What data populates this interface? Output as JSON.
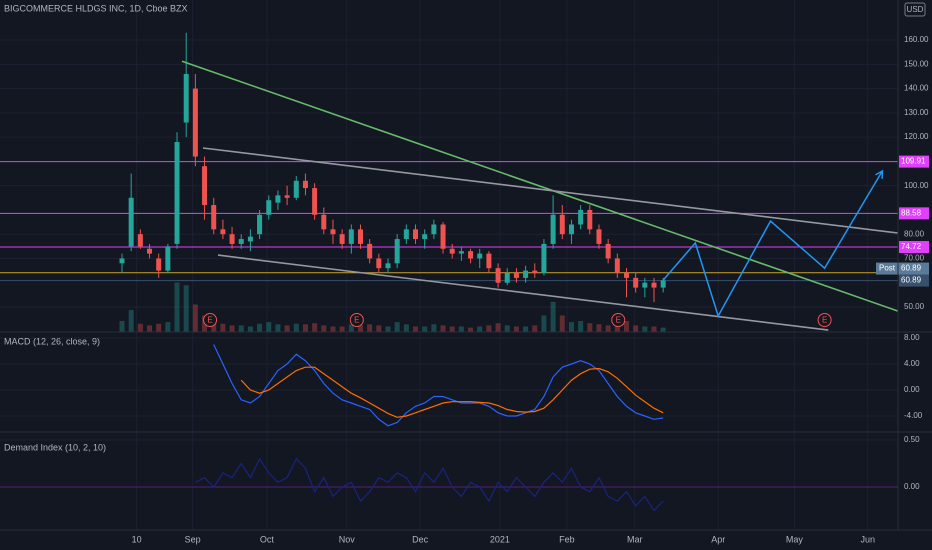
{
  "chart_data": {
    "type": "candlestick",
    "title": "BIGCOMMERCE HLDGS INC, 1D, Cboe BZX",
    "currency": "USD",
    "up_color": "#26a69a",
    "down_color": "#ef5350",
    "open": [
      68,
      75,
      80,
      74,
      70,
      65,
      76,
      126,
      140,
      108,
      92,
      82,
      80,
      76,
      77,
      80,
      88,
      93,
      96,
      95,
      102,
      99,
      88,
      82,
      80,
      76,
      82,
      76,
      70,
      66,
      68,
      78,
      82,
      78,
      80,
      84,
      74,
      72,
      73,
      70,
      72,
      66,
      60,
      64,
      62,
      65,
      64,
      76,
      88,
      80,
      84,
      90,
      82,
      76,
      70,
      64,
      62,
      58,
      60,
      58
    ],
    "high": [
      72,
      105,
      82,
      76,
      72,
      76,
      122,
      163,
      146,
      112,
      95,
      86,
      83,
      80,
      82,
      90,
      96,
      98,
      100,
      104,
      105,
      101,
      91,
      86,
      82,
      84,
      84,
      78,
      72,
      70,
      80,
      84,
      84,
      82,
      86,
      85,
      76,
      75,
      74,
      74,
      73,
      68,
      66,
      66,
      67,
      68,
      78,
      96,
      92,
      86,
      92,
      92,
      84,
      78,
      72,
      66,
      64,
      62,
      62,
      62
    ],
    "low": [
      64,
      73,
      74,
      70,
      62,
      64,
      74,
      120,
      108,
      86,
      80,
      78,
      74,
      74,
      73,
      78,
      86,
      90,
      92,
      94,
      96,
      86,
      80,
      76,
      74,
      72,
      74,
      68,
      64,
      64,
      66,
      76,
      76,
      74,
      78,
      72,
      70,
      69,
      68,
      66,
      64,
      58,
      59,
      60,
      60,
      62,
      63,
      74,
      78,
      76,
      82,
      80,
      74,
      68,
      62,
      54,
      56,
      54,
      52,
      56
    ],
    "close": [
      70,
      95,
      75,
      72,
      65,
      75,
      118,
      146,
      112,
      92,
      82,
      80,
      76,
      78,
      79,
      88,
      94,
      96,
      95,
      102,
      99,
      88,
      82,
      80,
      76,
      82,
      76,
      70,
      66,
      68,
      78,
      82,
      78,
      80,
      84,
      74,
      72,
      73,
      70,
      72,
      66,
      60,
      64,
      62,
      65,
      64,
      76,
      88,
      80,
      84,
      90,
      82,
      76,
      70,
      64,
      62,
      58,
      60,
      58,
      61
    ],
    "volume": [
      20,
      40,
      15,
      12,
      15,
      18,
      90,
      85,
      50,
      30,
      20,
      15,
      12,
      12,
      10,
      15,
      18,
      14,
      12,
      15,
      14,
      16,
      12,
      10,
      10,
      14,
      12,
      14,
      12,
      10,
      18,
      14,
      10,
      10,
      14,
      12,
      10,
      10,
      8,
      10,
      12,
      16,
      12,
      10,
      10,
      12,
      30,
      55,
      30,
      18,
      20,
      16,
      14,
      12,
      15,
      20,
      12,
      10,
      10,
      8
    ],
    "volume_lim": [
      0,
      100
    ],
    "xlim": [
      -13.3,
      84.6
    ],
    "xticks": [
      {
        "value": 1.6,
        "label": "10"
      },
      {
        "value": 7.7,
        "label": "Sep"
      },
      {
        "value": 15.8,
        "label": "Oct"
      },
      {
        "value": 24.5,
        "label": "Nov"
      },
      {
        "value": 32.5,
        "label": "Dec"
      },
      {
        "value": 41.2,
        "label": "2021"
      },
      {
        "value": 48.5,
        "label": "Feb"
      },
      {
        "value": 55.9,
        "label": "Mar"
      },
      {
        "value": 65,
        "label": "Apr"
      },
      {
        "value": 73.3,
        "label": "May"
      },
      {
        "value": 81.3,
        "label": "Jun"
      }
    ],
    "ylim": [
      39.7,
      176.5
    ],
    "yticks": [
      {
        "value": 50,
        "label": "50.00"
      },
      {
        "value": 70,
        "label": "70.00"
      },
      {
        "value": 80,
        "label": "80.00"
      },
      {
        "value": 100,
        "label": "100.00"
      },
      {
        "value": 120,
        "label": "120.00"
      },
      {
        "value": 130,
        "label": "130.00"
      },
      {
        "value": 140,
        "label": "140.00"
      },
      {
        "value": 150,
        "label": "150.00"
      },
      {
        "value": 160,
        "label": "160.00"
      }
    ],
    "price_lines": [
      {
        "value": 109.91,
        "label": "109.91",
        "color": "#e040fb"
      },
      {
        "value": 88.58,
        "label": "88.58",
        "color": "#e040fb"
      },
      {
        "value": 74.72,
        "label": "74.72",
        "color": "#e040fb"
      },
      {
        "value": 64.1,
        "color": "#c9a227"
      },
      {
        "value": 60.89,
        "label": "60.89",
        "color": "#37506b"
      }
    ],
    "post_tag": {
      "label": "Post",
      "price_label": "60.89",
      "color": "#5b7b9a"
    },
    "trend_lines": [
      {
        "color": "#66bb6a",
        "x": [
          6.54,
          84.6
        ],
        "y": [
          151.3,
          48.3
        ]
      },
      {
        "color": "#9598a1",
        "x": [
          8.83,
          84.6
        ],
        "y": [
          115.5,
          80.5
        ]
      },
      {
        "color": "#9598a1",
        "x": [
          10.47,
          77
        ],
        "y": [
          71.4,
          40.5
        ]
      }
    ],
    "projection": {
      "color": "#2196f3",
      "x": [
        59,
        62.5,
        65,
        70.7,
        76.6,
        82.9
      ],
      "y": [
        61.1,
        76.4,
        46.3,
        85.4,
        66.0,
        106.1
      ]
    },
    "earnings": {
      "label": "E",
      "x": [
        9.6,
        25.6,
        54.1,
        76.6
      ]
    },
    "macd": {
      "title": "MACD (12, 26, close, 9)",
      "ylim": [
        -6.46,
        8.92
      ],
      "yticks": [
        {
          "value": 8,
          "label": "8.00"
        },
        {
          "value": 4,
          "label": "4.00"
        },
        {
          "value": 0,
          "label": "0.00"
        },
        {
          "value": -4,
          "label": "-4.00"
        }
      ],
      "series": [
        {
          "color": "#2962ff",
          "values": [
            null,
            null,
            null,
            null,
            null,
            null,
            null,
            null,
            null,
            null,
            7,
            4,
            1,
            -1.5,
            -2,
            -1,
            1,
            3,
            4,
            5.5,
            4.5,
            3,
            1,
            -0.5,
            -1.5,
            -2,
            -2.5,
            -3,
            -4.5,
            -5.5,
            -5,
            -3.5,
            -2.5,
            -2,
            -1,
            -1,
            -1.5,
            -2,
            -2,
            -2,
            -2.5,
            -3.5,
            -4,
            -4,
            -3.5,
            -3,
            -1,
            2,
            3.5,
            4,
            4.5,
            4,
            3,
            1,
            -1,
            -2.5,
            -3.5,
            -4,
            -4.5,
            -4.3
          ]
        },
        {
          "color": "#ff6d00",
          "values": [
            null,
            null,
            null,
            null,
            null,
            null,
            null,
            null,
            null,
            null,
            null,
            null,
            null,
            1.5,
            0,
            -0.5,
            0,
            1,
            2,
            3,
            3.5,
            3.5,
            2.5,
            1.5,
            0.5,
            -0.5,
            -1.2,
            -2,
            -2.8,
            -3.6,
            -4.2,
            -4,
            -3.5,
            -3,
            -2.5,
            -2,
            -1.8,
            -1.8,
            -1.8,
            -1.9,
            -2,
            -2.4,
            -3,
            -3.3,
            -3.4,
            -3.3,
            -2.8,
            -1.5,
            0,
            1.5,
            2.5,
            3.2,
            3.3,
            2.8,
            1.8,
            0.5,
            -0.8,
            -1.8,
            -2.8,
            -3.5
          ]
        }
      ]
    },
    "demand_index": {
      "title": "Demand Index (10, 2, 10)",
      "ylim": [
        -0.457,
        0.585
      ],
      "yticks": [
        {
          "value": 0.5,
          "label": "0.50"
        },
        {
          "value": 0,
          "label": "0.00"
        }
      ],
      "zero_line_color": "#7b1fa2",
      "series": [
        {
          "color": "#1a237e",
          "values": [
            null,
            null,
            null,
            null,
            null,
            null,
            null,
            null,
            0.05,
            0.1,
            0.0,
            0.15,
            0.1,
            0.25,
            0.1,
            0.3,
            0.15,
            0.05,
            0.1,
            0.3,
            0.2,
            -0.05,
            0.1,
            -0.1,
            0.0,
            0.05,
            -0.15,
            -0.05,
            0.1,
            0.05,
            0.15,
            0.1,
            -0.05,
            0.15,
            0.05,
            0.2,
            0.0,
            -0.1,
            0.05,
            0.0,
            -0.15,
            0.05,
            -0.05,
            0.1,
            0.0,
            -0.1,
            0.05,
            0.15,
            0.05,
            0.2,
            0.0,
            -0.05,
            0.1,
            -0.1,
            -0.15,
            -0.05,
            -0.2,
            -0.1,
            -0.25,
            -0.15
          ]
        }
      ]
    }
  }
}
